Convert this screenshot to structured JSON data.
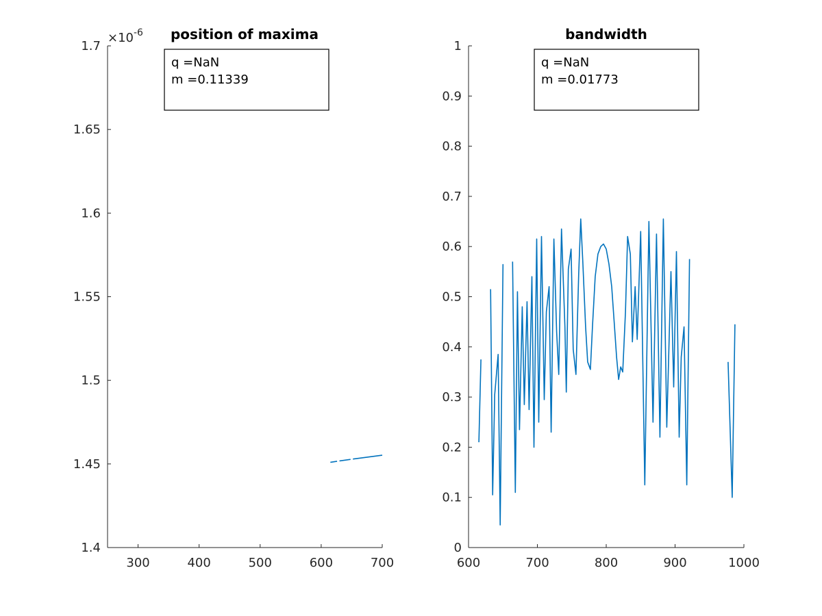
{
  "chart_data": [
    {
      "type": "line",
      "title": "position of maxima",
      "xlabel": "",
      "ylabel": "",
      "xlim": [
        250,
        700
      ],
      "ylim": [
        1.4,
        1.7
      ],
      "y_exponent_label": "×10",
      "y_exponent_power": "-6",
      "x_ticks": [
        300,
        400,
        500,
        600,
        700
      ],
      "x_tick_labels": [
        "300",
        "400",
        "500",
        "600",
        "700"
      ],
      "y_ticks": [
        1.4,
        1.45,
        1.5,
        1.55,
        1.6,
        1.65,
        1.7
      ],
      "y_tick_labels": [
        "1.4",
        "1.45",
        "1.5",
        "1.55",
        "1.6",
        "1.65",
        "1.7"
      ],
      "grid": false,
      "color": "#0072bd",
      "annotation": [
        "q =NaN",
        "m =0.11339"
      ],
      "series": [
        {
          "segments": [
            [
              [
                615,
                1.451
              ],
              [
                626,
                1.4516
              ]
            ],
            [
              [
                630,
                1.4518
              ],
              [
                648,
                1.4527
              ]
            ],
            [
              [
                652,
                1.4529
              ],
              [
                700,
                1.4552
              ]
            ]
          ]
        }
      ]
    },
    {
      "type": "line",
      "title": "bandwidth",
      "xlabel": "",
      "ylabel": "",
      "xlim": [
        600,
        1000
      ],
      "ylim": [
        0,
        1
      ],
      "x_ticks": [
        600,
        700,
        800,
        900,
        1000
      ],
      "x_tick_labels": [
        "600",
        "700",
        "800",
        "900",
        "1000"
      ],
      "y_ticks": [
        0,
        0.1,
        0.2,
        0.3,
        0.4,
        0.5,
        0.6,
        0.7,
        0.8,
        0.9,
        1
      ],
      "y_tick_labels": [
        "0",
        "0.1",
        "0.2",
        "0.3",
        "0.4",
        "0.5",
        "0.6",
        "0.7",
        "0.8",
        "0.9",
        "1"
      ],
      "grid": false,
      "color": "#0072bd",
      "annotation": [
        "q =NaN",
        "m =0.01773"
      ],
      "series": [
        {
          "segments": [
            [
              [
                615,
                0.21
              ],
              [
                618,
                0.375
              ]
            ],
            [
              [
                632,
                0.515
              ],
              [
                635,
                0.105
              ],
              [
                638,
                0.305
              ],
              [
                643,
                0.385
              ],
              [
                646,
                0.045
              ],
              [
                650,
                0.565
              ]
            ],
            [
              [
                664,
                0.57
              ],
              [
                668,
                0.11
              ],
              [
                671,
                0.51
              ],
              [
                674,
                0.235
              ],
              [
                678,
                0.48
              ],
              [
                681,
                0.285
              ],
              [
                685,
                0.49
              ],
              [
                688,
                0.275
              ],
              [
                692,
                0.54
              ],
              [
                695,
                0.2
              ],
              [
                699,
                0.615
              ],
              [
                702,
                0.25
              ],
              [
                706,
                0.62
              ],
              [
                710,
                0.295
              ],
              [
                713,
                0.47
              ],
              [
                717,
                0.52
              ],
              [
                720,
                0.23
              ],
              [
                724,
                0.615
              ],
              [
                728,
                0.43
              ],
              [
                731,
                0.345
              ],
              [
                735,
                0.635
              ],
              [
                740,
                0.44
              ],
              [
                742,
                0.31
              ],
              [
                745,
                0.555
              ],
              [
                749,
                0.595
              ],
              [
                752,
                0.395
              ],
              [
                756,
                0.345
              ],
              [
                760,
                0.545
              ],
              [
                763,
                0.655
              ],
              [
                766,
                0.57
              ],
              [
                770,
                0.44
              ],
              [
                773,
                0.37
              ],
              [
                777,
                0.355
              ],
              [
                780,
                0.44
              ],
              [
                784,
                0.54
              ],
              [
                788,
                0.585
              ],
              [
                792,
                0.6
              ],
              [
                796,
                0.605
              ],
              [
                800,
                0.595
              ],
              [
                804,
                0.565
              ],
              [
                808,
                0.52
              ],
              [
                812,
                0.44
              ],
              [
                815,
                0.38
              ],
              [
                818,
                0.335
              ],
              [
                821,
                0.36
              ],
              [
                824,
                0.35
              ],
              [
                828,
                0.47
              ],
              [
                831,
                0.62
              ],
              [
                835,
                0.585
              ],
              [
                838,
                0.41
              ],
              [
                842,
                0.52
              ],
              [
                845,
                0.415
              ],
              [
                850,
                0.63
              ],
              [
                856,
                0.125
              ],
              [
                862,
                0.65
              ],
              [
                868,
                0.25
              ],
              [
                873,
                0.625
              ],
              [
                878,
                0.22
              ],
              [
                883,
                0.655
              ],
              [
                888,
                0.24
              ],
              [
                894,
                0.55
              ],
              [
                898,
                0.32
              ],
              [
                902,
                0.59
              ],
              [
                906,
                0.22
              ],
              [
                909,
                0.38
              ],
              [
                913,
                0.44
              ],
              [
                917,
                0.125
              ],
              [
                921,
                0.575
              ]
            ]
          ]
        },
        {
          "segments": [
            [
              [
                977,
                0.37
              ],
              [
                983,
                0.1
              ],
              [
                987,
                0.445
              ]
            ]
          ]
        }
      ]
    }
  ]
}
